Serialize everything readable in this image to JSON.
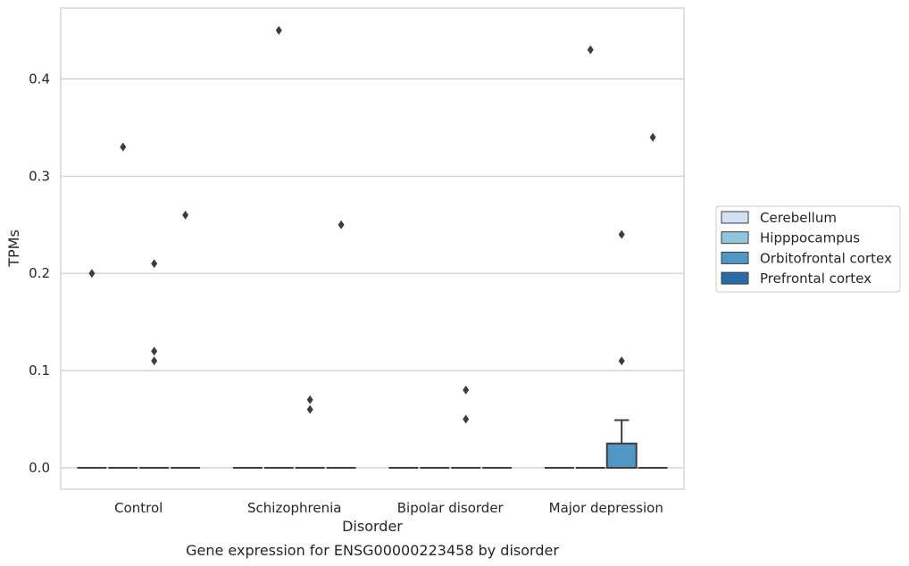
{
  "chart_data": {
    "type": "box",
    "title": "",
    "caption": "Gene expression for ENSG00000223458 by disorder",
    "xlabel": "Disorder",
    "ylabel": "TPMs",
    "categories": [
      "Control",
      "Schizophrenia",
      "Bipolar disorder",
      "Major depression"
    ],
    "ylim": [
      -0.022,
      0.475
    ],
    "yticks": [
      0.0,
      0.1,
      0.2,
      0.3,
      0.4
    ],
    "ytick_labels": [
      "0.0",
      "0.1",
      "0.2",
      "0.3",
      "0.4"
    ],
    "grid": "horizontal",
    "legend_position": "right",
    "series": [
      {
        "name": "Cerebellum",
        "color": "#cfe1f2",
        "boxes": [
          {
            "q1": 0,
            "median": 0,
            "q3": 0,
            "whisker_low": 0,
            "whisker_high": 0,
            "outliers": [
              0.2
            ]
          },
          {
            "q1": 0,
            "median": 0,
            "q3": 0,
            "whisker_low": 0,
            "whisker_high": 0,
            "outliers": []
          },
          {
            "q1": 0,
            "median": 0,
            "q3": 0,
            "whisker_low": 0,
            "whisker_high": 0,
            "outliers": []
          },
          {
            "q1": 0,
            "median": 0,
            "q3": 0,
            "whisker_low": 0,
            "whisker_high": 0,
            "outliers": []
          }
        ]
      },
      {
        "name": "Hipppocampus",
        "color": "#93c4de",
        "boxes": [
          {
            "q1": 0,
            "median": 0,
            "q3": 0,
            "whisker_low": 0,
            "whisker_high": 0,
            "outliers": [
              0.33
            ]
          },
          {
            "q1": 0,
            "median": 0,
            "q3": 0,
            "whisker_low": 0,
            "whisker_high": 0,
            "outliers": [
              0.45
            ]
          },
          {
            "q1": 0,
            "median": 0,
            "q3": 0,
            "whisker_low": 0,
            "whisker_high": 0,
            "outliers": []
          },
          {
            "q1": 0,
            "median": 0,
            "q3": 0,
            "whisker_low": 0,
            "whisker_high": 0,
            "outliers": [
              0.43
            ]
          }
        ]
      },
      {
        "name": "Orbitofrontal cortex",
        "color": "#5097c5",
        "boxes": [
          {
            "q1": 0,
            "median": 0,
            "q3": 0,
            "whisker_low": 0,
            "whisker_high": 0,
            "outliers": [
              0.21,
              0.12,
              0.11
            ]
          },
          {
            "q1": 0,
            "median": 0,
            "q3": 0,
            "whisker_low": 0,
            "whisker_high": 0,
            "outliers": [
              0.07,
              0.06
            ]
          },
          {
            "q1": 0,
            "median": 0,
            "q3": 0,
            "whisker_low": 0,
            "whisker_high": 0,
            "outliers": [
              0.08,
              0.05
            ]
          },
          {
            "q1": 0,
            "median": 0,
            "q3": 0.025,
            "whisker_low": 0,
            "whisker_high": 0.049,
            "outliers": [
              0.24,
              0.11
            ]
          }
        ]
      },
      {
        "name": "Prefrontal cortex",
        "color": "#2a6aa8",
        "boxes": [
          {
            "q1": 0,
            "median": 0,
            "q3": 0,
            "whisker_low": 0,
            "whisker_high": 0,
            "outliers": [
              0.26
            ]
          },
          {
            "q1": 0,
            "median": 0,
            "q3": 0,
            "whisker_low": 0,
            "whisker_high": 0,
            "outliers": [
              0.25
            ]
          },
          {
            "q1": 0,
            "median": 0,
            "q3": 0,
            "whisker_low": 0,
            "whisker_high": 0,
            "outliers": []
          },
          {
            "q1": 0,
            "median": 0,
            "q3": 0,
            "whisker_low": 0,
            "whisker_high": 0,
            "outliers": [
              0.34
            ]
          }
        ]
      }
    ]
  }
}
